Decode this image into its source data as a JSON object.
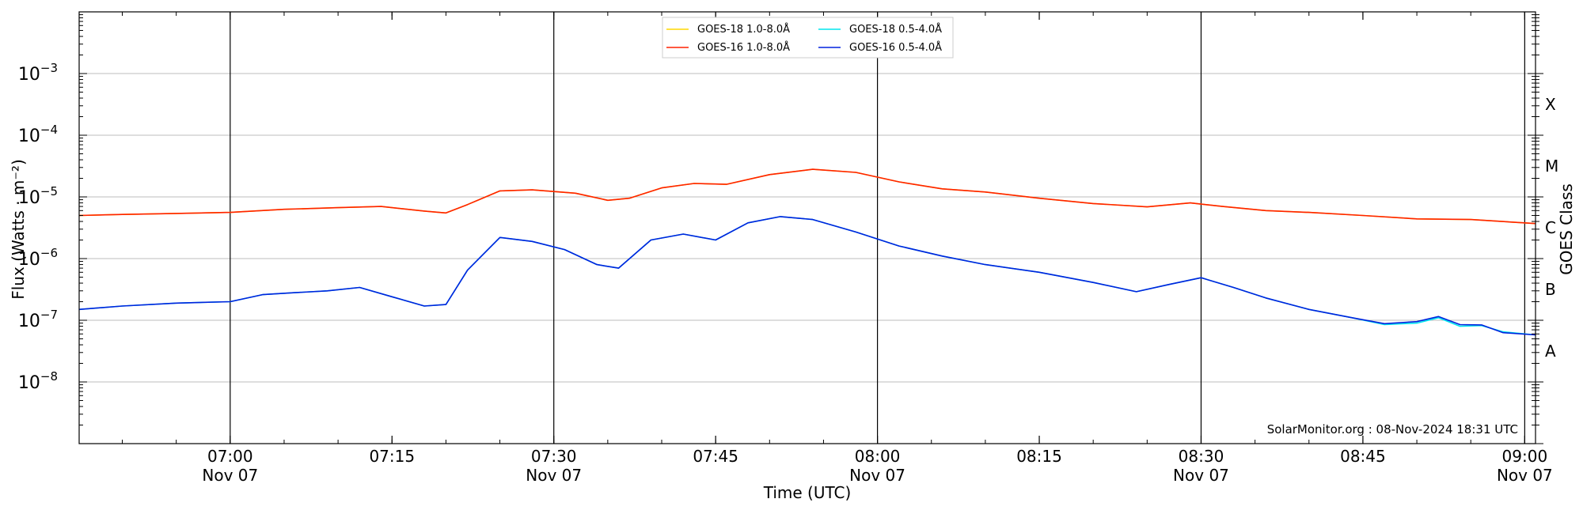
{
  "chart_data": {
    "type": "line",
    "ylabel": "Flux (Watts · m⁻²)",
    "xlabel": "Time (UTC)",
    "right_ylabel": "GOES Class",
    "y_scale": "log",
    "ylim": [
      1e-09,
      0.01
    ],
    "xlim": [
      "06:46",
      "09:01"
    ],
    "x_ticks": [
      {
        "time": "07:00",
        "label": "07:00",
        "sublabel": "Nov 07"
      },
      {
        "time": "07:15",
        "label": "07:15",
        "sublabel": ""
      },
      {
        "time": "07:30",
        "label": "07:30",
        "sublabel": "Nov 07"
      },
      {
        "time": "07:45",
        "label": "07:45",
        "sublabel": ""
      },
      {
        "time": "08:00",
        "label": "08:00",
        "sublabel": "Nov 07"
      },
      {
        "time": "08:15",
        "label": "08:15",
        "sublabel": ""
      },
      {
        "time": "08:30",
        "label": "08:30",
        "sublabel": "Nov 07"
      },
      {
        "time": "08:45",
        "label": "08:45",
        "sublabel": ""
      },
      {
        "time": "09:00",
        "label": "09:00",
        "sublabel": "Nov 07"
      }
    ],
    "y_ticks": [
      {
        "exp": -3,
        "base": "10",
        "sup": "−3"
      },
      {
        "exp": -4,
        "base": "10",
        "sup": "−4"
      },
      {
        "exp": -5,
        "base": "10",
        "sup": "−5"
      },
      {
        "exp": -6,
        "base": "10",
        "sup": "−6"
      },
      {
        "exp": -7,
        "base": "10",
        "sup": "−7"
      },
      {
        "exp": -8,
        "base": "10",
        "sup": "−8"
      }
    ],
    "goes_classes": [
      {
        "label": "X",
        "exp": -3.5
      },
      {
        "label": "M",
        "exp": -4.5
      },
      {
        "label": "C",
        "exp": -5.5
      },
      {
        "label": "B",
        "exp": -6.5
      },
      {
        "label": "A",
        "exp": -7.5
      }
    ],
    "vertical_lines": [
      "07:00",
      "07:30",
      "08:00",
      "08:30",
      "09:00"
    ],
    "grid": "horizontal at decades",
    "legend_position": "top-center",
    "annotation": "SolarMonitor.org : 08-Nov-2024 18:31 UTC",
    "series": [
      {
        "name": "GOES-18 1.0-8.0Å",
        "color": "#ffd700",
        "x": [
          "06:46",
          "06:50",
          "06:55",
          "07:00",
          "07:05",
          "07:10",
          "07:14",
          "07:18",
          "07:20",
          "07:22",
          "07:25",
          "07:28",
          "07:32",
          "07:35",
          "07:37",
          "07:40",
          "07:43",
          "07:46",
          "07:50",
          "07:54",
          "07:58",
          "08:02",
          "08:06",
          "08:10",
          "08:15",
          "08:20",
          "08:25",
          "08:29",
          "08:32",
          "08:36",
          "08:40",
          "08:45",
          "08:50",
          "08:55",
          "09:01"
        ],
        "y": [
          5e-06,
          5.2e-06,
          5.4e-06,
          5.6e-06,
          6.3e-06,
          6.7e-06,
          7e-06,
          5.9e-06,
          5.5e-06,
          7.5e-06,
          1.25e-05,
          1.3e-05,
          1.15e-05,
          8.8e-06,
          9.5e-06,
          1.4e-05,
          1.65e-05,
          1.6e-05,
          2.3e-05,
          2.8e-05,
          2.5e-05,
          1.75e-05,
          1.35e-05,
          1.2e-05,
          9.5e-06,
          7.8e-06,
          6.9e-06,
          8e-06,
          7e-06,
          6e-06,
          5.6e-06,
          5e-06,
          4.4e-06,
          4.3e-06,
          3.7e-06
        ]
      },
      {
        "name": "GOES-18 0.5-4.0Å",
        "color": "#00e5ee",
        "x": [
          "06:46",
          "06:50",
          "06:55",
          "07:00",
          "07:03",
          "07:06",
          "07:09",
          "07:12",
          "07:15",
          "07:18",
          "07:20",
          "07:22",
          "07:25",
          "07:28",
          "07:31",
          "07:34",
          "07:36",
          "07:39",
          "07:42",
          "07:45",
          "07:48",
          "07:51",
          "07:54",
          "07:58",
          "08:02",
          "08:06",
          "08:10",
          "08:15",
          "08:20",
          "08:24",
          "08:27",
          "08:30",
          "08:33",
          "08:36",
          "08:40",
          "08:44",
          "08:47",
          "08:50",
          "08:52",
          "08:54",
          "08:56",
          "08:58",
          "09:01"
        ],
        "y": [
          1.5e-07,
          1.7e-07,
          1.9e-07,
          2e-07,
          2.6e-07,
          2.8e-07,
          3e-07,
          3.4e-07,
          2.4e-07,
          1.7e-07,
          1.8e-07,
          6.5e-07,
          2.2e-06,
          1.9e-06,
          1.4e-06,
          8e-07,
          7e-07,
          2e-06,
          2.5e-06,
          2e-06,
          3.8e-06,
          4.8e-06,
          4.3e-06,
          2.7e-06,
          1.6e-06,
          1.1e-06,
          8e-07,
          6e-07,
          4.1e-07,
          2.9e-07,
          3.8e-07,
          4.9e-07,
          3.4e-07,
          2.3e-07,
          1.5e-07,
          1.1e-07,
          8.5e-08,
          9e-08,
          1.1e-07,
          8e-08,
          8.2e-08,
          6.5e-08,
          5.8e-08
        ]
      },
      {
        "name": "GOES-16 1.0-8.0Å",
        "color": "#ff2200",
        "x": [
          "06:46",
          "06:50",
          "06:55",
          "07:00",
          "07:05",
          "07:10",
          "07:14",
          "07:18",
          "07:20",
          "07:22",
          "07:25",
          "07:28",
          "07:32",
          "07:35",
          "07:37",
          "07:40",
          "07:43",
          "07:46",
          "07:50",
          "07:54",
          "07:58",
          "08:02",
          "08:06",
          "08:10",
          "08:15",
          "08:20",
          "08:25",
          "08:29",
          "08:32",
          "08:36",
          "08:40",
          "08:45",
          "08:50",
          "08:55",
          "09:01"
        ],
        "y": [
          5e-06,
          5.2e-06,
          5.4e-06,
          5.6e-06,
          6.3e-06,
          6.7e-06,
          7e-06,
          5.9e-06,
          5.5e-06,
          7.5e-06,
          1.25e-05,
          1.3e-05,
          1.15e-05,
          8.8e-06,
          9.5e-06,
          1.4e-05,
          1.65e-05,
          1.6e-05,
          2.3e-05,
          2.8e-05,
          2.5e-05,
          1.75e-05,
          1.35e-05,
          1.2e-05,
          9.5e-06,
          7.8e-06,
          6.9e-06,
          8e-06,
          7e-06,
          6e-06,
          5.6e-06,
          5e-06,
          4.4e-06,
          4.3e-06,
          3.7e-06
        ]
      },
      {
        "name": "GOES-16 0.5-4.0Å",
        "color": "#0022dd",
        "x": [
          "06:46",
          "06:50",
          "06:55",
          "07:00",
          "07:03",
          "07:06",
          "07:09",
          "07:12",
          "07:15",
          "07:18",
          "07:20",
          "07:22",
          "07:25",
          "07:28",
          "07:31",
          "07:34",
          "07:36",
          "07:39",
          "07:42",
          "07:45",
          "07:48",
          "07:51",
          "07:54",
          "07:58",
          "08:02",
          "08:06",
          "08:10",
          "08:15",
          "08:20",
          "08:24",
          "08:27",
          "08:30",
          "08:33",
          "08:36",
          "08:40",
          "08:44",
          "08:47",
          "08:50",
          "08:52",
          "08:54",
          "08:56",
          "08:58",
          "09:01"
        ],
        "y": [
          1.5e-07,
          1.7e-07,
          1.9e-07,
          2e-07,
          2.6e-07,
          2.8e-07,
          3e-07,
          3.4e-07,
          2.4e-07,
          1.7e-07,
          1.8e-07,
          6.5e-07,
          2.2e-06,
          1.9e-06,
          1.4e-06,
          8e-07,
          7e-07,
          2e-06,
          2.5e-06,
          2e-06,
          3.8e-06,
          4.8e-06,
          4.3e-06,
          2.7e-06,
          1.6e-06,
          1.1e-06,
          8e-07,
          6e-07,
          4.1e-07,
          2.9e-07,
          3.8e-07,
          4.9e-07,
          3.4e-07,
          2.3e-07,
          1.5e-07,
          1.1e-07,
          8.8e-08,
          9.5e-08,
          1.15e-07,
          8.5e-08,
          8.4e-08,
          6.3e-08,
          5.8e-08
        ]
      }
    ]
  }
}
